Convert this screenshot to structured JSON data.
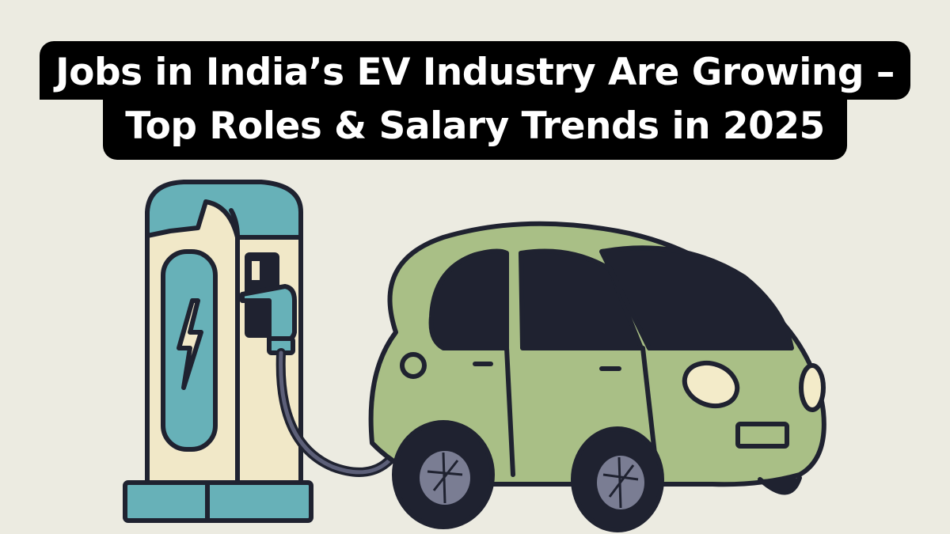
{
  "headline": {
    "line1": "Jobs in India’s EV Industry Are Growing –",
    "line2": "Top Roles & Salary Trends in 2025"
  },
  "illustration": {
    "subject": "ev-charging-station-with-green-car",
    "colors": {
      "background": "#ecebe1",
      "station_body": "#f1e8c8",
      "station_accent": "#67b1b8",
      "car_body": "#a9bf86",
      "window": "#1f2230",
      "outline": "#1f2230",
      "headlight": "#f3ebc9",
      "hubcap": "#7a7d93"
    }
  }
}
